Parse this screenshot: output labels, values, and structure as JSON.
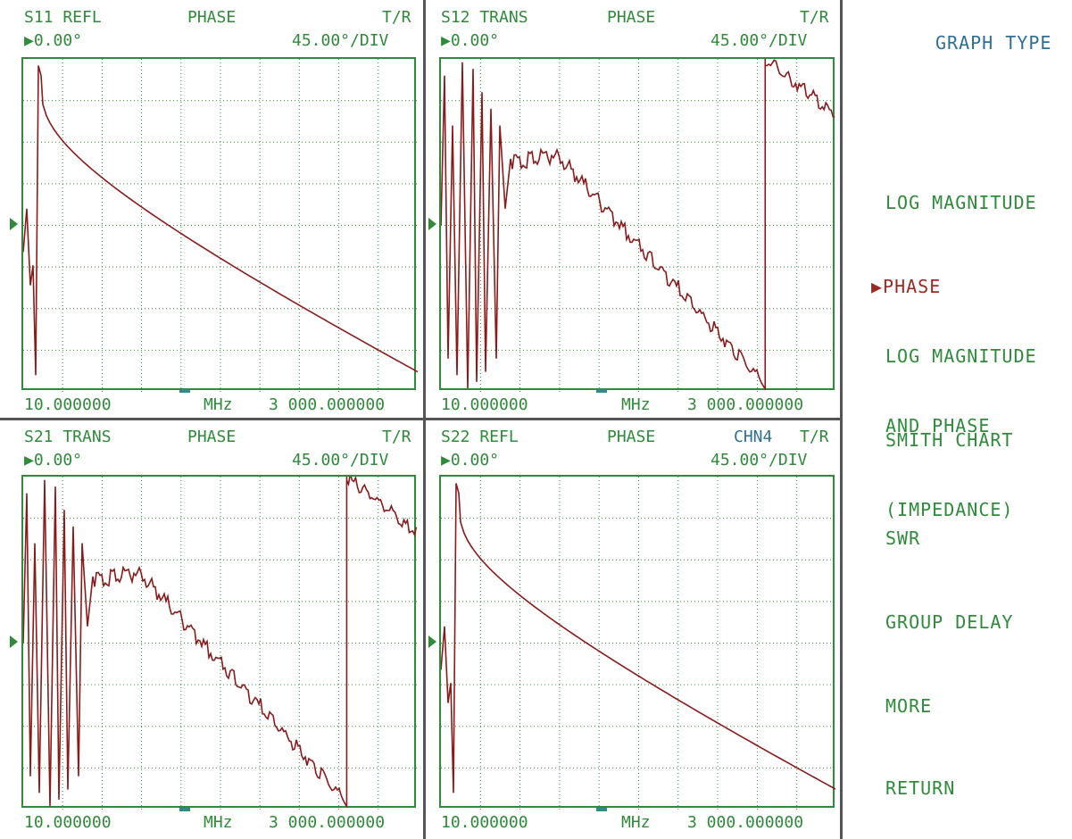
{
  "panels": [
    {
      "id": "s11",
      "param": "S11 REFL",
      "format": "PHASE",
      "chan": "",
      "mode": "T/R",
      "ref": "▶0.00°",
      "scale": "45.00°/DIV",
      "start": "10.000000",
      "unit": "MHz",
      "stop": "3 000.000000"
    },
    {
      "id": "s12",
      "param": "S12 TRANS",
      "format": "PHASE",
      "chan": "",
      "mode": "T/R",
      "ref": "▶0.00°",
      "scale": "45.00°/DIV",
      "start": "10.000000",
      "unit": "MHz",
      "stop": "3 000.000000"
    },
    {
      "id": "s21",
      "param": "S21 TRANS",
      "format": "PHASE",
      "chan": "",
      "mode": "T/R",
      "ref": "▶0.00°",
      "scale": "45.00°/DIV",
      "start": "10.000000",
      "unit": "MHz",
      "stop": "3 000.000000"
    },
    {
      "id": "s22",
      "param": "S22 REFL",
      "format": "PHASE",
      "chan": "CHN4",
      "mode": "T/R",
      "ref": "▶0.00°",
      "scale": "45.00°/DIV",
      "start": "10.000000",
      "unit": "MHz",
      "stop": "3 000.000000"
    }
  ],
  "menu": {
    "title": "GRAPH TYPE",
    "items": [
      {
        "label": "LOG MAGNITUDE",
        "line2": ""
      },
      {
        "label": "▶PHASE",
        "line2": ""
      },
      {
        "label": "LOG MAGNITUDE",
        "line2": "AND PHASE"
      },
      {
        "label": "SMITH CHART",
        "line2": "(IMPEDANCE)"
      },
      {
        "label": "SWR",
        "line2": ""
      },
      {
        "label": "GROUP DELAY",
        "line2": ""
      },
      {
        "label": "MORE",
        "line2": ""
      },
      {
        "label": "RETURN",
        "line2": ""
      }
    ]
  },
  "colors": {
    "grid": "#2e8b3a",
    "trace": "#8b1a1a",
    "accent": "#2f6f96"
  }
}
